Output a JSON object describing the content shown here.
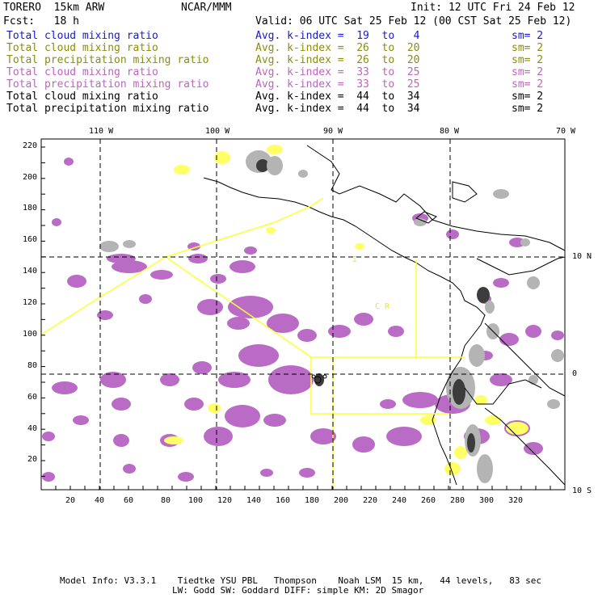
{
  "header": {
    "model": "TORERO  15km ARW",
    "center": "NCAR/MMM",
    "init": "Init: 12 UTC Fri 24 Feb 12",
    "fcst": "Fcst:   18 h",
    "valid": "Valid: 06 UTC Sat 25 Feb 12 (00 CST Sat 25 Feb 12)"
  },
  "legend": [
    {
      "field": "Total cloud mixing ratio",
      "kindex": "Avg. k-index =  19  to   4",
      "sm": "sm= 2",
      "color": "#1a1acc"
    },
    {
      "field": "Total cloud mixing ratio",
      "kindex": "Avg. k-index =  26  to  20",
      "sm": "sm= 2",
      "color": "#8c8c10"
    },
    {
      "field": "Total precipitation mixing ratio",
      "kindex": "Avg. k-index =  26  to  20",
      "sm": "sm= 2",
      "color": "#8c8c10"
    },
    {
      "field": "Total cloud mixing ratio",
      "kindex": "Avg. k-index =  33  to  25",
      "sm": "sm= 2",
      "color": "#bb66bb"
    },
    {
      "field": "Total precipitation mixing ratio",
      "kindex": "Avg. k-index =  33  to  25",
      "sm": "sm= 2",
      "color": "#bb66bb"
    },
    {
      "field": "Total cloud mixing ratio",
      "kindex": "Avg. k-index =  44  to  34",
      "sm": "sm= 2",
      "color": "#000000"
    },
    {
      "field": "Total precipitation mixing ratio",
      "kindex": "Avg. k-index =  44  to  34",
      "sm": "sm= 2",
      "color": "#000000"
    }
  ],
  "map": {
    "lon_labels": [
      "110 W",
      "100 W",
      "90 W",
      "80 W",
      "70 W"
    ],
    "lat_labels": [
      "10 N",
      "0",
      "10 S"
    ],
    "y_ticks": [
      "220",
      "200",
      "180",
      "160",
      "140",
      "120",
      "100",
      "80",
      "60",
      "40",
      "20"
    ],
    "x_ticks": [
      "20",
      "40",
      "60",
      "80",
      "100",
      "120",
      "140",
      "160",
      "180",
      "200",
      "220",
      "240",
      "260",
      "280",
      "300",
      "320"
    ],
    "region_label": "C R",
    "region_label_small": "I",
    "colors": {
      "light_gray": "#b4b4b4",
      "dark_gray": "#3c3c3c",
      "purple": "#b96bc6",
      "yellow": "#ffff66",
      "pale_blue": "#cfeefc",
      "outline": "#ffff33"
    }
  },
  "footer": {
    "line1": "Model Info: V3.3.1    Tiedtke YSU PBL   Thompson    Noah LSM  15 km,   44 levels,   83 sec",
    "line2": "LW: Godd SW: Goddard DIFF: simple KM: 2D Smagor"
  }
}
